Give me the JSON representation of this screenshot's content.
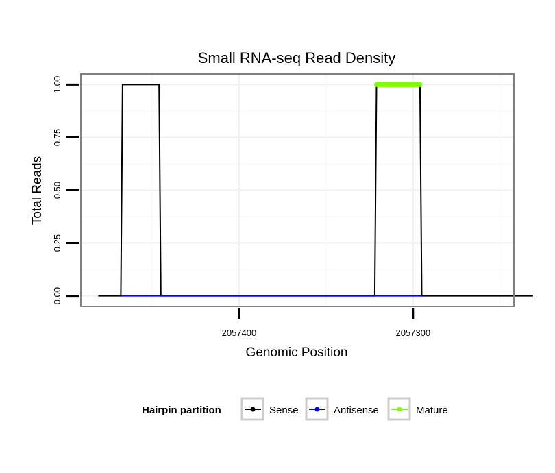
{
  "chart_data": {
    "type": "line",
    "title": "Small RNA-seq Read Density",
    "xlabel": "Genomic Position",
    "ylabel": "Total Reads",
    "x_reversed": true,
    "xlim": [
      2057491,
      2057242
    ],
    "ylim": [
      -0.05,
      1.05
    ],
    "x_ticks": [
      {
        "value": 2057400,
        "label": "2057400"
      },
      {
        "value": 2057300,
        "label": "2057300"
      }
    ],
    "y_ticks": [
      {
        "value": 0.0,
        "label": "0.00"
      },
      {
        "value": 0.25,
        "label": "0.25"
      },
      {
        "value": 0.5,
        "label": "0.50"
      },
      {
        "value": 0.75,
        "label": "0.75"
      },
      {
        "value": 1.0,
        "label": "1.00"
      }
    ],
    "grid": true,
    "legend": {
      "title": "Hairpin partition",
      "position": "bottom",
      "entries": [
        "Sense",
        "Antisense",
        "Mature"
      ]
    },
    "series": [
      {
        "name": "Sense",
        "color": "#000000",
        "x": [
          2057481,
          2057468,
          2057467,
          2057446,
          2057445,
          2057322,
          2057321,
          2057296,
          2057295,
          2057231
        ],
        "y": [
          0,
          0,
          1,
          1,
          0,
          0,
          1,
          1,
          0,
          0
        ]
      },
      {
        "name": "Antisense",
        "color": "#0000ff",
        "x": [
          2057468,
          2057445,
          2057322,
          2057295
        ],
        "y": [
          0,
          0,
          0,
          0
        ]
      },
      {
        "name": "Mature",
        "color": "#7fff00",
        "x": [
          2057321,
          2057296
        ],
        "y": [
          1,
          1
        ]
      }
    ]
  }
}
